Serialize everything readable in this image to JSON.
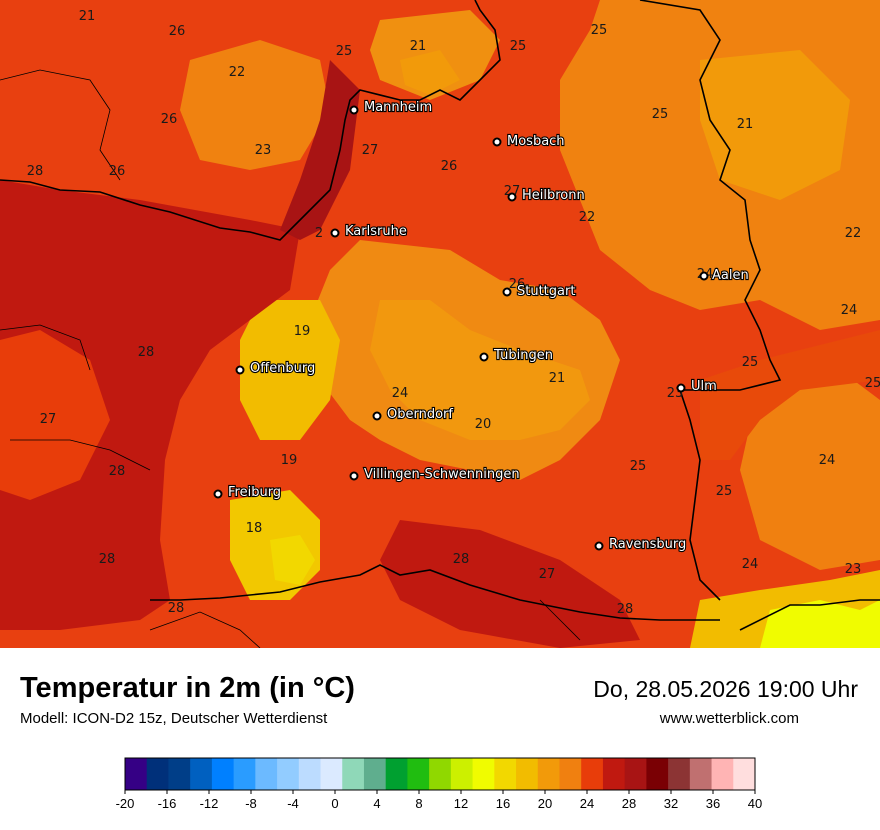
{
  "title": "Temperatur in 2m (in °C)",
  "model": "Modell: ICON-D2 15z, Deutscher Wetterdienst",
  "datetime": "Do, 28.05.2026 19:00 Uhr",
  "website": "www.wetterblick.com",
  "cities": [
    {
      "name": "Mannheim"
    },
    {
      "name": "Mosbach"
    },
    {
      "name": "Heilbronn"
    },
    {
      "name": "Karlsruhe"
    },
    {
      "name": "Stuttgart"
    },
    {
      "name": "Aalen"
    },
    {
      "name": "Tübingen"
    },
    {
      "name": "Offenburg"
    },
    {
      "name": "Ulm"
    },
    {
      "name": "Oberndorf"
    },
    {
      "name": "Villingen-Schwenningen"
    },
    {
      "name": "Freiburg"
    },
    {
      "name": "Ravensburg"
    }
  ],
  "temperature_labels": [
    "21",
    "26",
    "25",
    "21",
    "25",
    "25",
    "22",
    "26",
    "23",
    "25",
    "21",
    "28",
    "26",
    "27",
    "26",
    "27",
    "22",
    "2",
    "22",
    "26",
    "24",
    "19",
    "28",
    "24",
    "25",
    "21",
    "25",
    "27",
    "24",
    "20",
    "23",
    "28",
    "19",
    "25",
    "24",
    "25",
    "18",
    "28",
    "27",
    "28",
    "24",
    "23",
    "28",
    "28"
  ],
  "color_scale": {
    "ticks": [
      "-20",
      "-16",
      "-12",
      "-8",
      "-4",
      "0",
      "4",
      "8",
      "12",
      "16",
      "20",
      "24",
      "28",
      "32",
      "36",
      "40"
    ],
    "colors": [
      "#350085",
      "#00307a",
      "#003e88",
      "#0060c0",
      "#0080ff",
      "#2a9cff",
      "#6cbaff",
      "#92ccff",
      "#bcdcff",
      "#dbeaff",
      "#8fd8b8",
      "#5fae8e",
      "#00a030",
      "#20bd10",
      "#90d800",
      "#ccf000",
      "#f0fc00",
      "#f2d800",
      "#f2bc00",
      "#f29a0a",
      "#f08010",
      "#e83d0a",
      "#c01910",
      "#a81414",
      "#7a0004",
      "#8c3434",
      "#c07070",
      "#ffb4b4",
      "#ffdede"
    ]
  }
}
